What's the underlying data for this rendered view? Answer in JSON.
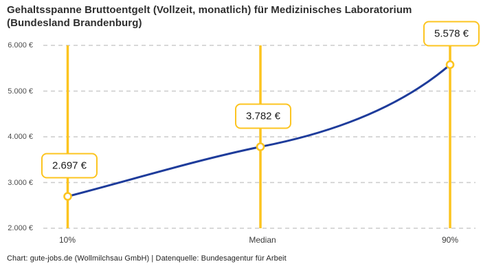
{
  "title": "Gehaltsspanne Bruttoentgelt (Vollzeit, monatlich) für Medizinisches Laboratorium (Bundesland Brandenburg)",
  "footer_credit": "Chart: gute-jobs.de (Wollmilchsau GmbH) | Datenquelle: Bundesagentur für Arbeit",
  "colors": {
    "accent_yellow": "#fcc41f",
    "line_blue": "#1e3c9b",
    "gridline_gray": "#cbcbcb",
    "title_text": "#2e2e2e",
    "axis_text": "#4d4d4d"
  },
  "chart_data": {
    "type": "line",
    "title": "Gehaltsspanne Bruttoentgelt (Vollzeit, monatlich) für Medizinisches Laboratorium (Bundesland Brandenburg)",
    "categories": [
      "10%",
      "Median",
      "90%"
    ],
    "values": [
      2697,
      3782,
      5578
    ],
    "value_labels": [
      "2.697 €",
      "3.782 €",
      "5.578 €"
    ],
    "unit": "€",
    "yticks": [
      2000,
      3000,
      4000,
      5000,
      6000
    ],
    "ytick_labels": [
      "2.000 €",
      "3.000 €",
      "4.000 €",
      "5.000 €",
      "6.000 €"
    ],
    "ylim": [
      2000,
      6000
    ],
    "grid": "horizontal-dashed",
    "legend": "none",
    "annotations": "each percentile has a vertical yellow marker line with a boxed value label",
    "source": "Chart: gute-jobs.de (Wollmilchsau GmbH) | Datenquelle: Bundesagentur für Arbeit"
  }
}
